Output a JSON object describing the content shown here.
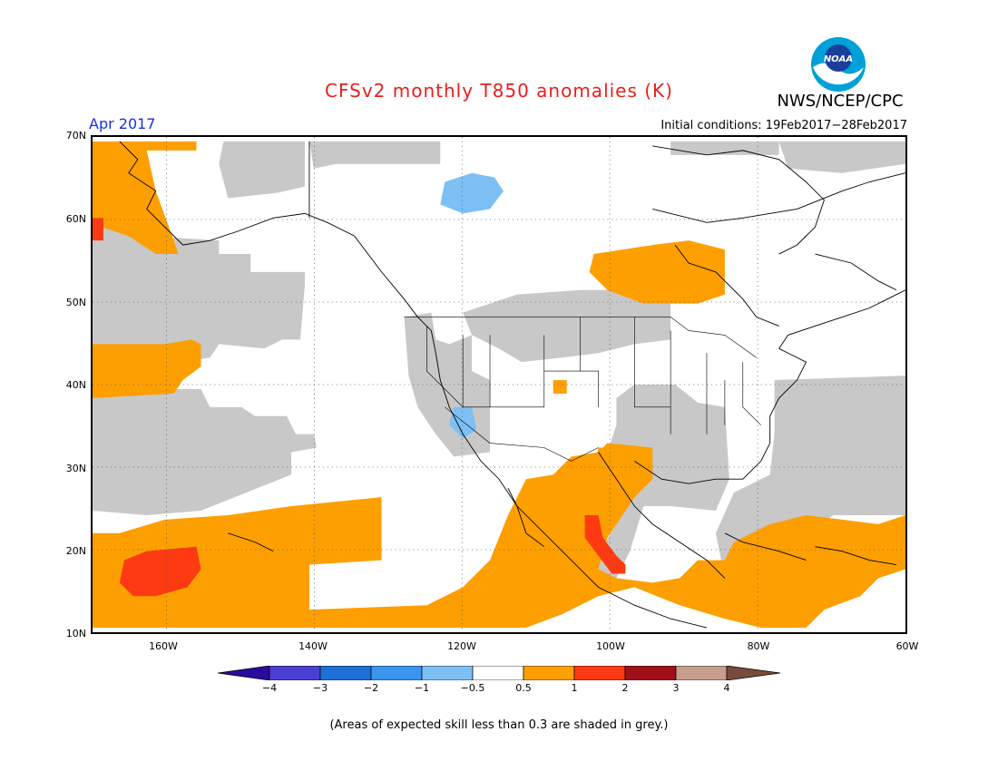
{
  "header": {
    "title": "CFSv2 monthly T850 anomalies (K)",
    "org": "NWS/NCEP/CPC",
    "logo_text": "NOAA",
    "month": "Apr 2017",
    "initial_conditions": "Initial conditions: 19Feb2017−28Feb2017"
  },
  "map": {
    "lat_labels": [
      "70N",
      "60N",
      "50N",
      "40N",
      "30N",
      "20N",
      "10N"
    ],
    "lon_labels": [
      "160W",
      "140W",
      "120W",
      "100W",
      "80W",
      "60W"
    ],
    "skill_grey_color": "#c8c8c8",
    "coastline_color": "#000000"
  },
  "colorbar": {
    "labels": [
      "−4",
      "−3",
      "−2",
      "−1",
      "−0.5",
      "0.5",
      "1",
      "2",
      "3",
      "4"
    ],
    "colors": [
      "#2b0a9c",
      "#4a3fd0",
      "#1e6fd6",
      "#3a95ee",
      "#7cc0f6",
      "#ffffff",
      "#fd9f00",
      "#fd3a12",
      "#a0101a",
      "#c79d8d",
      "#7a4b3c"
    ]
  },
  "footnote": "(Areas of expected skill less than 0.3 are shaded in grey.)"
}
